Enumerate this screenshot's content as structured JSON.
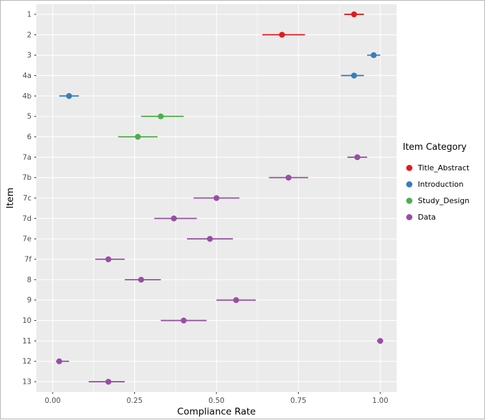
{
  "chart_data": {
    "type": "scatter",
    "xlabel": "Compliance Rate",
    "ylabel": "Item",
    "xlim": [
      0,
      1
    ],
    "x_ticks": [
      0,
      0.25,
      0.5,
      0.75,
      1
    ],
    "x_tick_labels": [
      "0.00",
      "0.25",
      "0.50",
      "0.75",
      "1.00"
    ],
    "grid": "major+minor",
    "legend_position": "right",
    "panel_background": "#EBEBEB",
    "grid_color": "#FFFFFF",
    "tick_color": "#333333",
    "tick_label_color": "#4D4D4D",
    "legend_title": "Item Category",
    "legend": [
      {
        "label": "Title_Abstract",
        "color": "#E41A1C"
      },
      {
        "label": "Introduction",
        "color": "#377EB8"
      },
      {
        "label": "Study_Design",
        "color": "#4DAF4A"
      },
      {
        "label": "Data",
        "color": "#984EA3"
      }
    ],
    "points": [
      {
        "item": "1",
        "category": "Title_Abstract",
        "value": 0.92,
        "ci_low": 0.89,
        "ci_high": 0.95
      },
      {
        "item": "2",
        "category": "Title_Abstract",
        "value": 0.7,
        "ci_low": 0.64,
        "ci_high": 0.77
      },
      {
        "item": "3",
        "category": "Introduction",
        "value": 0.98,
        "ci_low": 0.96,
        "ci_high": 1.0
      },
      {
        "item": "4a",
        "category": "Introduction",
        "value": 0.92,
        "ci_low": 0.88,
        "ci_high": 0.95
      },
      {
        "item": "4b",
        "category": "Introduction",
        "value": 0.05,
        "ci_low": 0.02,
        "ci_high": 0.08
      },
      {
        "item": "5",
        "category": "Study_Design",
        "value": 0.33,
        "ci_low": 0.27,
        "ci_high": 0.4
      },
      {
        "item": "6",
        "category": "Study_Design",
        "value": 0.26,
        "ci_low": 0.2,
        "ci_high": 0.32
      },
      {
        "item": "7a",
        "category": "Data",
        "value": 0.93,
        "ci_low": 0.9,
        "ci_high": 0.96
      },
      {
        "item": "7b",
        "category": "Data",
        "value": 0.72,
        "ci_low": 0.66,
        "ci_high": 0.78
      },
      {
        "item": "7c",
        "category": "Data",
        "value": 0.5,
        "ci_low": 0.43,
        "ci_high": 0.57
      },
      {
        "item": "7d",
        "category": "Data",
        "value": 0.37,
        "ci_low": 0.31,
        "ci_high": 0.44
      },
      {
        "item": "7e",
        "category": "Data",
        "value": 0.48,
        "ci_low": 0.41,
        "ci_high": 0.55
      },
      {
        "item": "7f",
        "category": "Data",
        "value": 0.17,
        "ci_low": 0.13,
        "ci_high": 0.22
      },
      {
        "item": "8",
        "category": "Data",
        "value": 0.27,
        "ci_low": 0.22,
        "ci_high": 0.33
      },
      {
        "item": "9",
        "category": "Data",
        "value": 0.56,
        "ci_low": 0.5,
        "ci_high": 0.62
      },
      {
        "item": "10",
        "category": "Data",
        "value": 0.4,
        "ci_low": 0.33,
        "ci_high": 0.47
      },
      {
        "item": "11",
        "category": "Data",
        "value": 1.0,
        "ci_low": 0.99,
        "ci_high": 1.0
      },
      {
        "item": "12",
        "category": "Data",
        "value": 0.02,
        "ci_low": 0.01,
        "ci_high": 0.05
      },
      {
        "item": "13",
        "category": "Data",
        "value": 0.17,
        "ci_low": 0.11,
        "ci_high": 0.22
      }
    ]
  }
}
